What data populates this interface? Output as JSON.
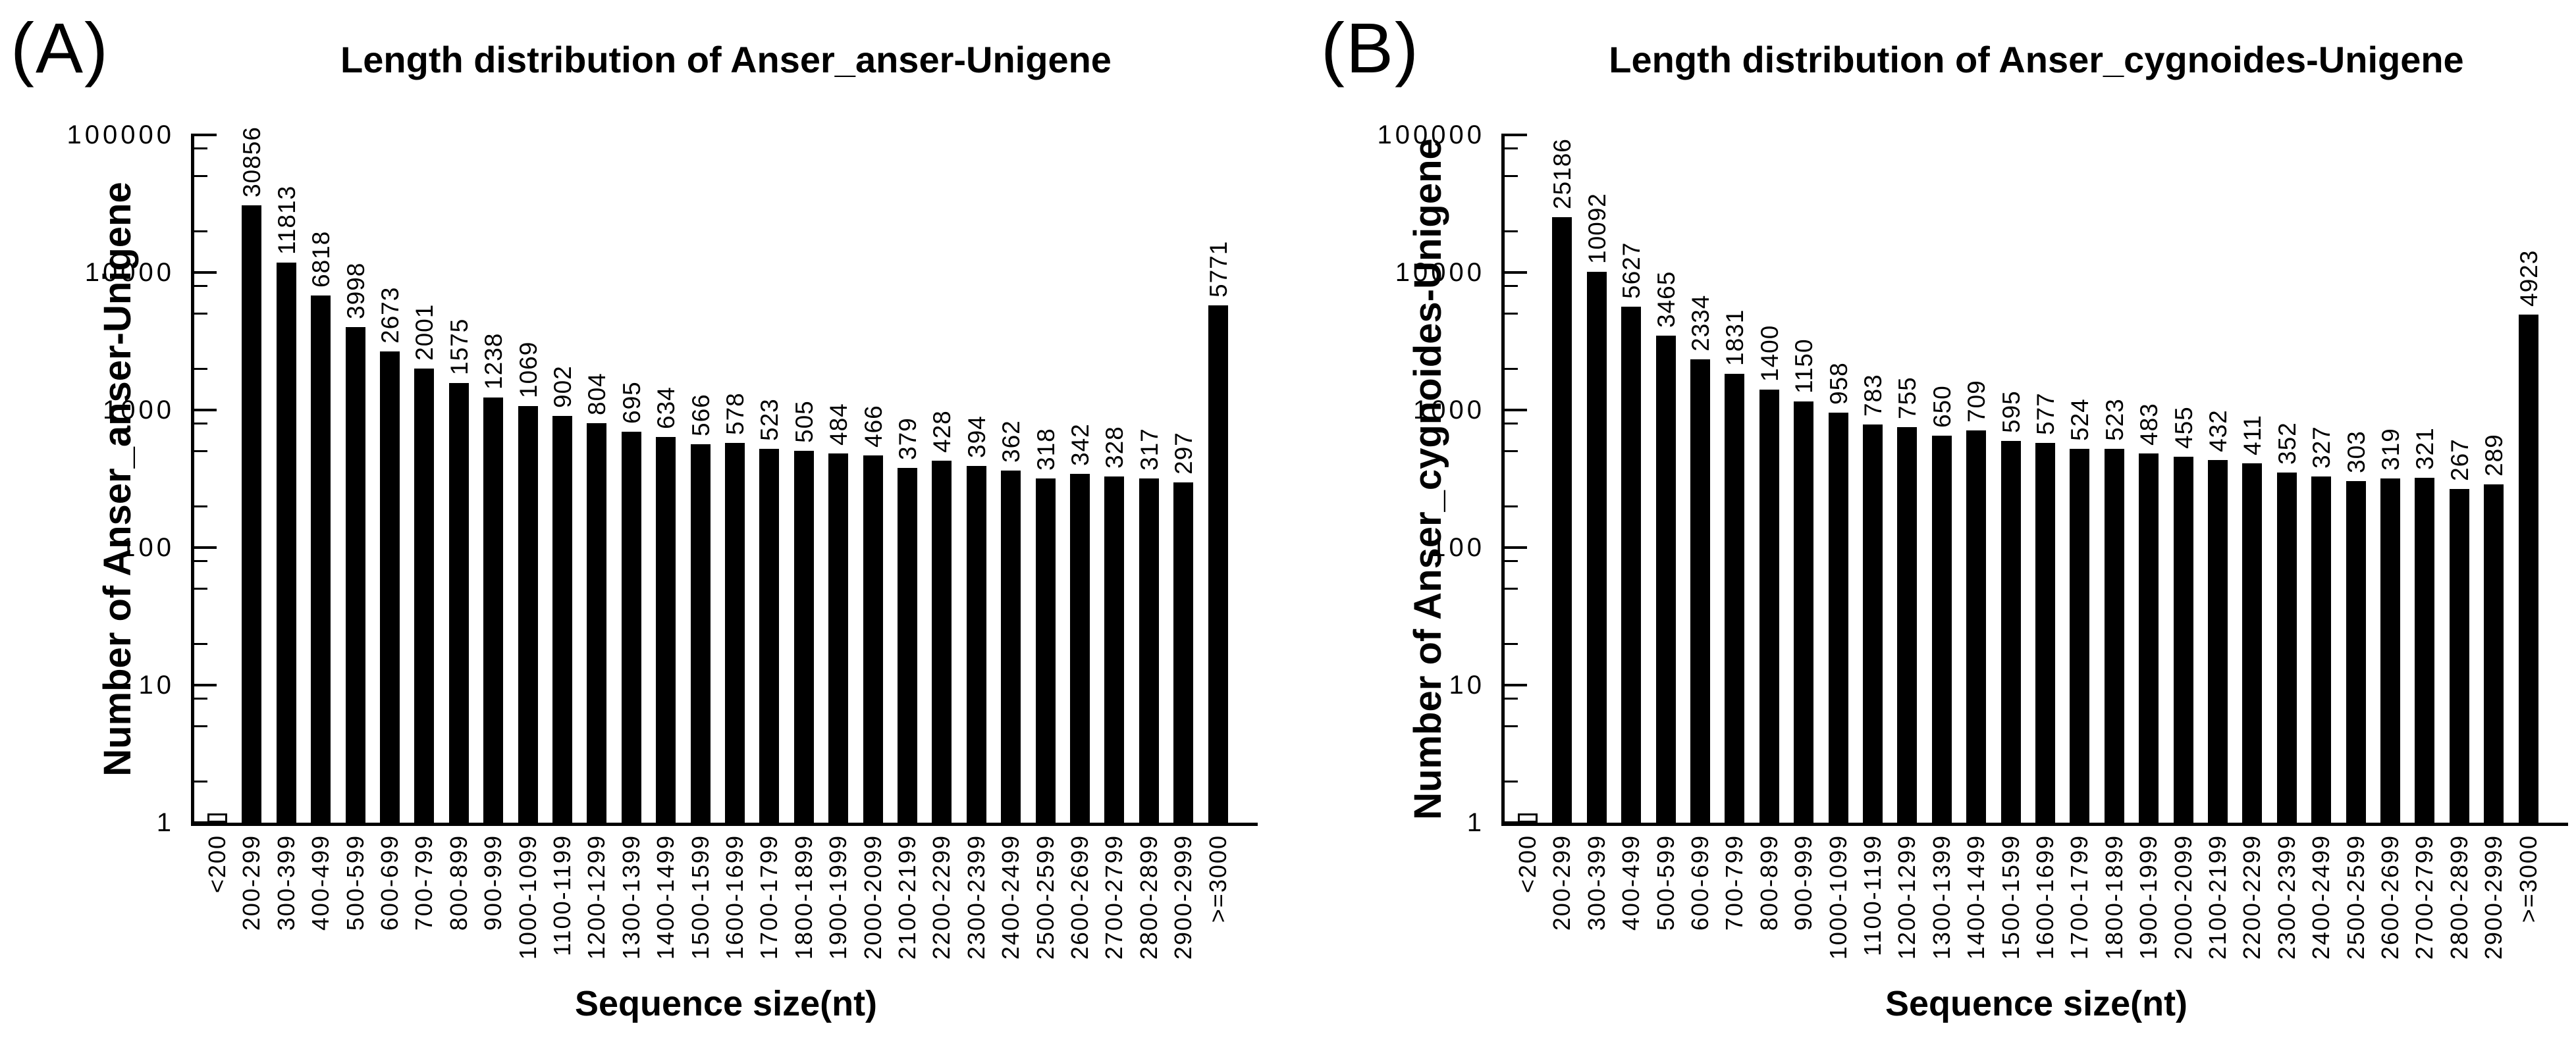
{
  "figure": {
    "background": "#ffffff",
    "ink": "#000000",
    "layout": "two horizontal panels (A) and (B), black-and-white scientific bar charts"
  },
  "minor_tick_multipliers": [
    2,
    5,
    8
  ],
  "chart_data": [
    {
      "type": "bar",
      "panel_label": "(A)",
      "title": "Length distribution of Anser_anser-Unigene",
      "xlabel": "Sequence size(nt)",
      "ylabel": "Number of Anser_anser-Unigene",
      "yscale": "log",
      "ylim": [
        1,
        100000
      ],
      "ytick_labels": [
        "1",
        "10",
        "100",
        "1000",
        "10000",
        "100000"
      ],
      "grid": false,
      "legend": null,
      "bar_color": "#000000",
      "categories": [
        "<200",
        "200-299",
        "300-399",
        "400-499",
        "500-599",
        "600-699",
        "700-799",
        "800-899",
        "900-999",
        "1000-1099",
        "1100-1199",
        "1200-1299",
        "1300-1399",
        "1400-1499",
        "1500-1599",
        "1600-1699",
        "1700-1799",
        "1800-1899",
        "1900-1999",
        "2000-2099",
        "2100-2199",
        "2200-2299",
        "2300-2399",
        "2400-2499",
        "2500-2599",
        "2600-2699",
        "2700-2799",
        "2800-2899",
        "2900-2999",
        ">=3000"
      ],
      "values": [
        1,
        30856,
        11813,
        6818,
        3998,
        2673,
        2001,
        1575,
        1238,
        1069,
        902,
        804,
        695,
        634,
        566,
        578,
        523,
        505,
        484,
        466,
        379,
        428,
        394,
        362,
        318,
        342,
        328,
        317,
        297,
        5771
      ],
      "first_bar": {
        "category": "<200",
        "label_shown": false,
        "style": "tiny hollow stub at baseline"
      }
    },
    {
      "type": "bar",
      "panel_label": "(B)",
      "title": "Length distribution of Anser_cygnoides-Unigene",
      "xlabel": "Sequence size(nt)",
      "ylabel": "Number of Anser_cygnoides-Unigene",
      "yscale": "log",
      "ylim": [
        1,
        100000
      ],
      "ytick_labels": [
        "1",
        "10",
        "100",
        "1000",
        "10000",
        "100000"
      ],
      "grid": false,
      "legend": null,
      "bar_color": "#000000",
      "categories": [
        "<200",
        "200-299",
        "300-399",
        "400-499",
        "500-599",
        "600-699",
        "700-799",
        "800-899",
        "900-999",
        "1000-1099",
        "1100-1199",
        "1200-1299",
        "1300-1399",
        "1400-1499",
        "1500-1599",
        "1600-1699",
        "1700-1799",
        "1800-1899",
        "1900-1999",
        "2000-2099",
        "2100-2199",
        "2200-2299",
        "2300-2399",
        "2400-2499",
        "2500-2599",
        "2600-2699",
        "2700-2799",
        "2800-2899",
        "2900-2999",
        ">=3000"
      ],
      "values": [
        1,
        25186,
        10092,
        5627,
        3465,
        2334,
        1831,
        1400,
        1150,
        958,
        783,
        755,
        650,
        709,
        595,
        577,
        524,
        523,
        483,
        455,
        432,
        411,
        352,
        327,
        303,
        319,
        321,
        267,
        289,
        4923
      ],
      "first_bar": {
        "category": "<200",
        "label_shown": false,
        "style": "tiny hollow stub at baseline"
      }
    }
  ]
}
